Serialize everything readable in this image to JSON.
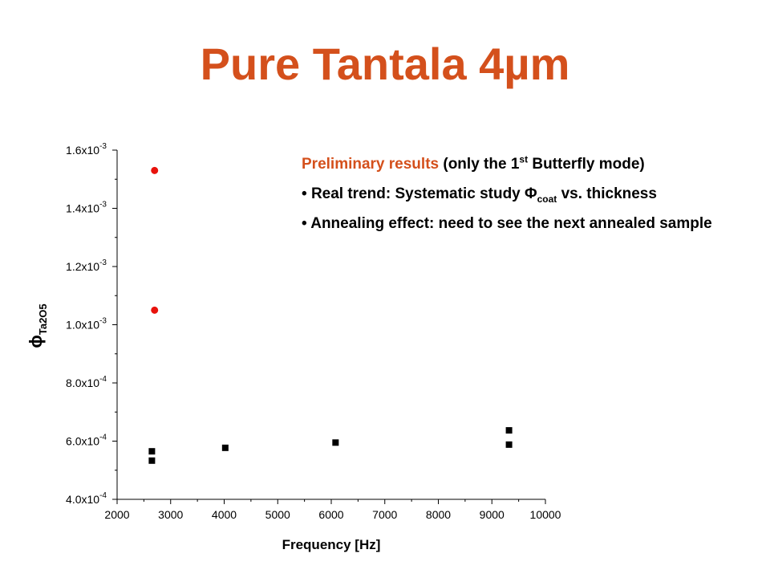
{
  "slide": {
    "title": "Pure Tantala 4µm"
  },
  "notes": {
    "heading_accent": "Preliminary results",
    "heading_rest": "(only the 1",
    "heading_sup": "st",
    "heading_end": "Butterfly mode)",
    "bullets": [
      {
        "bullet": "•",
        "before": "Real trend: Systematic study Φ",
        "sub": "coat",
        "after": "vs. thickness"
      },
      {
        "bullet": "•",
        "text": "Annealing effect: need to see the next annealed sample"
      }
    ]
  },
  "colors": {
    "title": "#d4501c",
    "red_series": "#e8120c",
    "black_series": "#000000"
  },
  "chart_data": {
    "type": "scatter",
    "xlabel": "Frequency [Hz]",
    "ylabel_main": "ϕ",
    "ylabel_sub": "Ta2O5",
    "xlim": [
      2000,
      10000
    ],
    "ylim": [
      0.0004,
      0.0016
    ],
    "x_ticks": [
      2000,
      3000,
      4000,
      5000,
      6000,
      7000,
      8000,
      9000,
      10000
    ],
    "x_tick_labels": [
      "2000",
      "3000",
      "4000",
      "5000",
      "6000",
      "7000",
      "8000",
      "9000",
      "10000"
    ],
    "y_ticks": [
      0.0004,
      0.0006,
      0.0008,
      0.001,
      0.0012,
      0.0014,
      0.0016
    ],
    "y_tick_labels": [
      {
        "mant": "4.0x10",
        "exp": "-4"
      },
      {
        "mant": "6.0x10",
        "exp": "-4"
      },
      {
        "mant": "8.0x10",
        "exp": "-4"
      },
      {
        "mant": "1.0x10",
        "exp": "-3"
      },
      {
        "mant": "1.2x10",
        "exp": "-3"
      },
      {
        "mant": "1.4x10",
        "exp": "-3"
      },
      {
        "mant": "1.6x10",
        "exp": "-3"
      }
    ],
    "grid": false,
    "series": [
      {
        "marker": "square",
        "color": "#000000",
        "points": [
          [
            2650,
            0.000565
          ],
          [
            2650,
            0.000533
          ],
          [
            4020,
            0.000577
          ],
          [
            6080,
            0.000595
          ],
          [
            9320,
            0.000637
          ],
          [
            9320,
            0.000588
          ]
        ]
      },
      {
        "marker": "circle",
        "color": "#e8120c",
        "points": [
          [
            2700,
            0.00153
          ],
          [
            2700,
            0.00105
          ]
        ]
      }
    ]
  }
}
